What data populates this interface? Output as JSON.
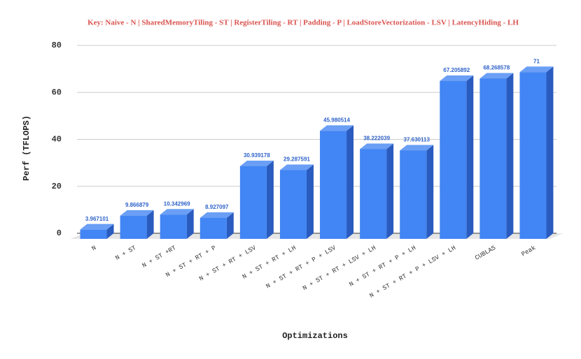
{
  "chart_data": {
    "type": "bar3d",
    "title": "Key: Naive - N | SharedMemoryTiling - ST | RegisterTiling - RT | Padding - P | LoadStoreVectorization - LSV | LatencyHiding - LH",
    "x_label": "Optimizations",
    "y_label": "Perf (TFLOPS)",
    "categories": [
      "N",
      "N + ST",
      "N + ST +RT",
      "N + ST + RT + P",
      "N + ST + RT + LSV",
      "N + ST + RT + LH",
      "N + ST + RT + P + LSV",
      "N + ST + RT + LSV + LH",
      "N + ST + RT + P + LH",
      "N + ST + RT + P + LSV + LH",
      "CUBLAS",
      "Peak"
    ],
    "values": [
      3.967101,
      9.866879,
      10.342969,
      8.927097,
      30.939178,
      29.287591,
      45.980514,
      38.222039,
      37.630113,
      67.205892,
      68.268578,
      71
    ],
    "color": "#4285f4",
    "ylim": [
      0,
      80
    ],
    "yticks": [
      0,
      20,
      40,
      60,
      80
    ],
    "grid": true
  }
}
